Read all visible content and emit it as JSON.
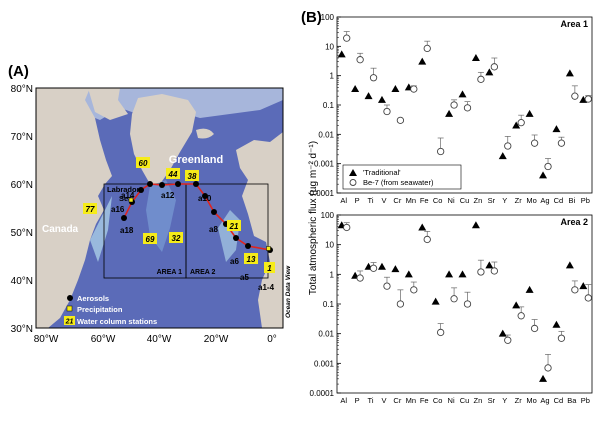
{
  "panel_a": {
    "label": "(A)",
    "greenland": "Greenland",
    "canada": "Canada",
    "labrador_1": "Labrador",
    "labrador_2": "Sea",
    "area1": "AREA 1",
    "area2": "AREA 2",
    "credit": "Ocean Data View",
    "lat_ticks": [
      "80°N",
      "70°N",
      "60°N",
      "50°N",
      "40°N",
      "30°N"
    ],
    "lon_ticks": [
      "80°W",
      "60°W",
      "40°W",
      "20°W",
      "0°"
    ],
    "station_labels": [
      "a1-4",
      "a5",
      "a6",
      "a8",
      "a10",
      "a12",
      "a14",
      "a16",
      "a18"
    ],
    "water_column_labels": [
      "60",
      "44",
      "38",
      "77",
      "69",
      "32",
      "21",
      "13",
      "1"
    ],
    "legend": {
      "aerosols": "Aerosols",
      "precipitation": "Precipitation",
      "water_prefix": "21",
      "water": "Water column stations"
    },
    "colors": {
      "land": "#d8d0c6",
      "ocean": "#5b6bb8",
      "shelf": "#a9cde6",
      "track": "#e0241f",
      "station_box": "#f6ec19"
    }
  },
  "panel_b": {
    "label": "(B)",
    "y_axis_label": "Total atmospheric flux (µg m⁻² d⁻¹)",
    "legend_traditional": "'Traditional'",
    "legend_be7": "Be-7 (from seawater)"
  },
  "chart_data": [
    {
      "type": "scatter",
      "title": "Area 1",
      "yscale": "log",
      "ylim": [
        0.0001,
        100
      ],
      "ytick_labels": [
        "0.0001",
        "0.001",
        "0.01",
        "0.1",
        "1",
        "10",
        "100"
      ],
      "categories": [
        "Al",
        "P",
        "Ti",
        "V",
        "Cr",
        "Mn",
        "Fe",
        "Co",
        "Ni",
        "Cu",
        "Zn",
        "Sr",
        "Y",
        "Zr",
        "Mo",
        "Ag",
        "Cd",
        "Bi",
        "Pb"
      ],
      "series": [
        {
          "name": "'Traditional'",
          "marker": "triangle",
          "values": [
            5.3,
            0.35,
            0.2,
            0.15,
            0.35,
            0.4,
            3.0,
            null,
            0.05,
            0.23,
            4.0,
            1.3,
            0.0018,
            0.02,
            0.05,
            0.0004,
            0.015,
            1.2,
            0.15
          ]
        },
        {
          "name": "Be-7 (from seawater)",
          "marker": "open-circle",
          "values": [
            19,
            3.5,
            0.85,
            0.06,
            0.03,
            0.35,
            8.5,
            0.0026,
            0.1,
            0.08,
            0.75,
            2.0,
            0.004,
            0.025,
            0.005,
            0.0008,
            0.005,
            0.2,
            0.16
          ]
        },
        {
          "name": "",
          "values": [
            32,
            5.8,
            1.8,
            0.1,
            null,
            0.45,
            15,
            0.0075,
            0.15,
            0.13,
            1.3,
            4.0,
            0.0085,
            0.045,
            0.0095,
            0.0015,
            0.008,
            0.45,
            0.21
          ]
        }
      ]
    },
    {
      "type": "scatter",
      "title": "Area 2",
      "yscale": "log",
      "ylim": [
        0.0001,
        100
      ],
      "ytick_labels": [
        "0.0001",
        "0.001",
        "0.01",
        "0.1",
        "1",
        "10",
        "100"
      ],
      "categories": [
        "Al",
        "P",
        "Ti",
        "V",
        "Cr",
        "Mn",
        "Fe",
        "Co",
        "Ni",
        "Cu",
        "Zn",
        "Sr",
        "Y",
        "Zr",
        "Mo",
        "Ag",
        "Cd",
        "Ba",
        "Pb"
      ],
      "series": [
        {
          "name": "'Traditional'",
          "marker": "triangle",
          "values": [
            45,
            0.9,
            1.8,
            1.8,
            1.5,
            1.0,
            38,
            0.12,
            1.0,
            1.0,
            45,
            2.0,
            0.01,
            0.09,
            0.3,
            0.0003,
            0.02,
            2.0,
            0.4
          ]
        },
        {
          "name": "Be-7 (from seawater)",
          "marker": "open-circle",
          "values": [
            38,
            0.75,
            1.6,
            0.4,
            0.1,
            0.3,
            15,
            0.011,
            0.15,
            0.1,
            1.2,
            1.3,
            0.006,
            0.04,
            0.015,
            0.0007,
            0.007,
            0.3,
            0.16
          ]
        },
        {
          "name": "",
          "values": [
            55,
            1.3,
            2.5,
            0.8,
            0.3,
            0.55,
            28,
            0.022,
            0.35,
            0.25,
            3.0,
            2.6,
            0.009,
            0.08,
            0.03,
            0.002,
            0.012,
            0.6,
            0.45
          ]
        }
      ]
    }
  ]
}
